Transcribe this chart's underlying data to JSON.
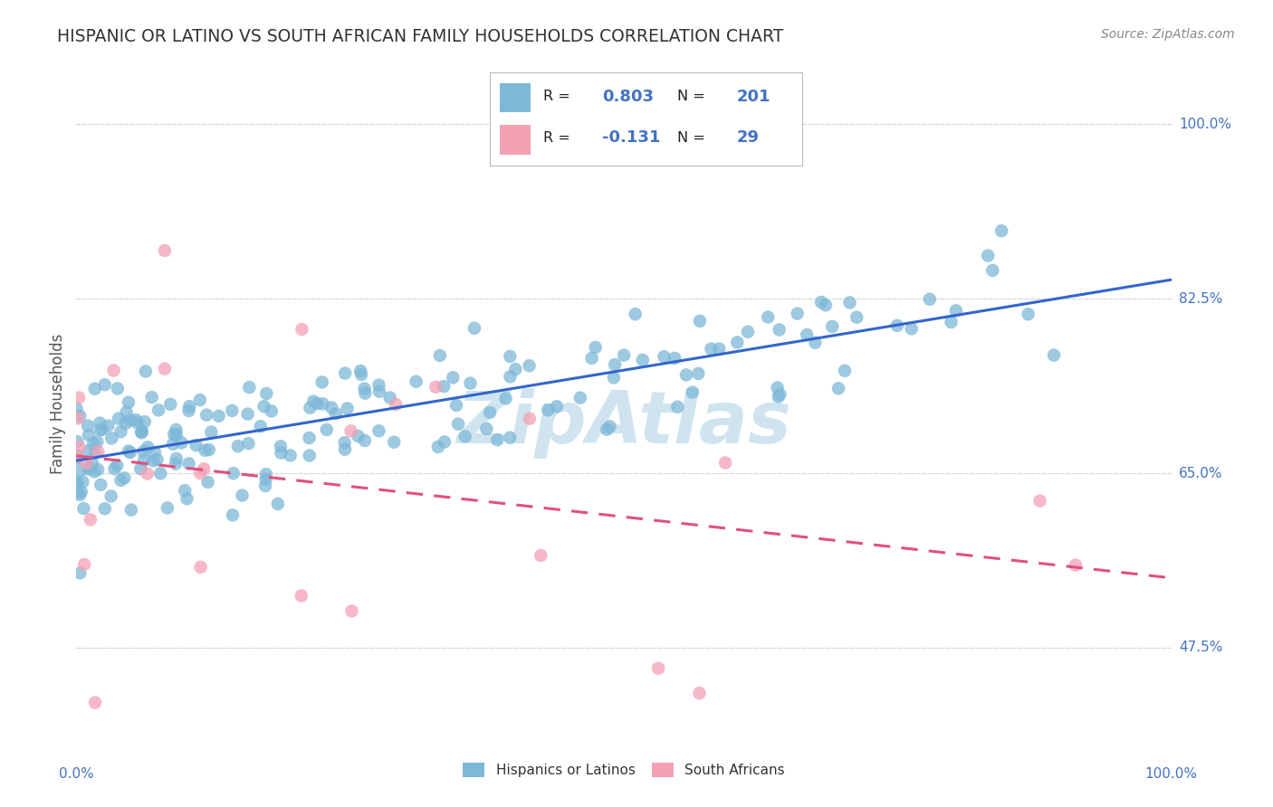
{
  "title": "HISPANIC OR LATINO VS SOUTH AFRICAN FAMILY HOUSEHOLDS CORRELATION CHART",
  "source": "Source: ZipAtlas.com",
  "ylabel": "Family Households",
  "y_tick_labels": [
    "47.5%",
    "65.0%",
    "82.5%",
    "100.0%"
  ],
  "y_tick_positions": [
    0.475,
    0.65,
    0.825,
    1.0
  ],
  "xlim": [
    0.0,
    1.0
  ],
  "ylim": [
    0.38,
    1.06
  ],
  "legend1_r": "0.803",
  "legend1_n": "201",
  "legend2_r": "-0.131",
  "legend2_n": "29",
  "blue_color": "#7db8d8",
  "pink_color": "#f4a0b5",
  "blue_line_color": "#3366cc",
  "pink_line_color": "#e05080",
  "watermark": "ZipAtlas",
  "watermark_color": "#d0e4f0",
  "background_color": "#ffffff",
  "grid_color": "#d8d8d8",
  "title_color": "#333333",
  "axis_label_color": "#555555",
  "y_tick_color": "#4472c4",
  "x_tick_color": "#4472c4",
  "legend_r_color": "#4472c4",
  "source_color": "#888888",
  "bottom_legend_color": "#333333"
}
